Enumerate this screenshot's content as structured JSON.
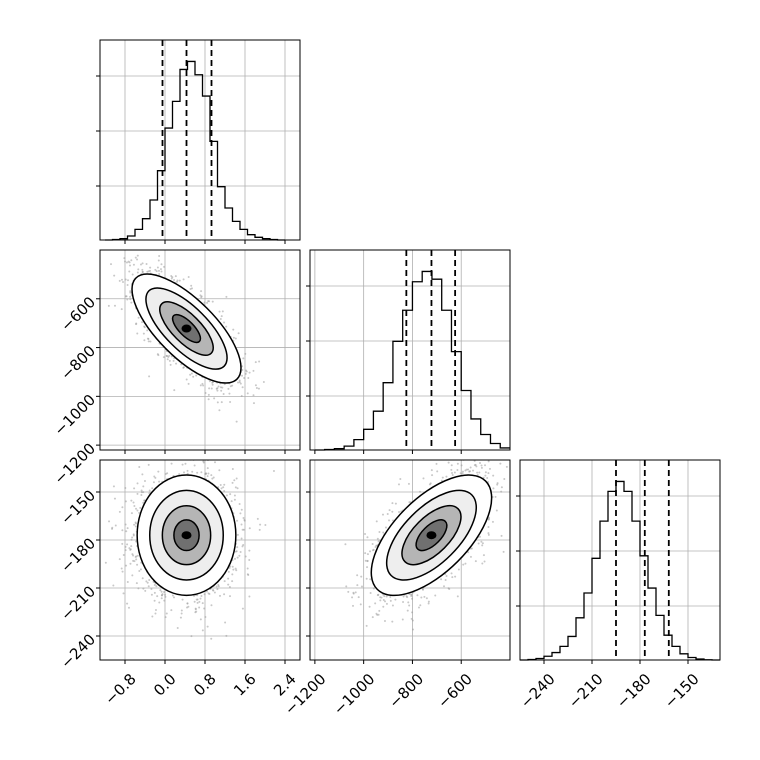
{
  "chart_data": {
    "type": "corner",
    "grid": true,
    "variables": [
      {
        "index": 0,
        "range": [
          -1.3,
          2.7
        ],
        "ticks": [
          -0.8,
          0.0,
          0.8,
          1.6,
          2.4
        ],
        "tick_labels": [
          "−0.8",
          "0.0",
          "0.8",
          "1.6",
          "2.4"
        ],
        "quantiles": [
          -0.05,
          0.43,
          0.93
        ],
        "mean": 0.43,
        "sd": 0.42
      },
      {
        "index": 1,
        "range": [
          -1220,
          -400
        ],
        "ticks": [
          -1200,
          -1000,
          -800,
          -600
        ],
        "tick_labels": [
          "−1200",
          "−1000",
          "−800",
          "−600"
        ],
        "quantiles": [
          -825,
          -722,
          -625
        ],
        "mean": -722,
        "sd": 95
      },
      {
        "index": 2,
        "range": [
          -255,
          -130
        ],
        "ticks": [
          -240,
          -210,
          -180,
          -150
        ],
        "tick_labels": [
          "−240",
          "−210",
          "−180",
          "−150"
        ],
        "quantiles": [
          -195,
          -177,
          -162
        ],
        "mean": -177,
        "sd": 16
      }
    ],
    "panels": [
      {
        "row": 0,
        "col": 0,
        "type": "histogram",
        "var": 0,
        "bins": [
          -1.2,
          -1.05,
          -0.9,
          -0.75,
          -0.6,
          -0.45,
          -0.3,
          -0.15,
          0.0,
          0.15,
          0.3,
          0.45,
          0.6,
          0.75,
          0.9,
          1.05,
          1.2,
          1.35,
          1.5,
          1.65,
          1.8,
          1.95,
          2.1,
          2.25,
          2.4
        ],
        "counts": [
          0,
          2,
          5,
          15,
          40,
          80,
          150,
          260,
          420,
          520,
          640,
          670,
          620,
          540,
          370,
          200,
          120,
          70,
          40,
          20,
          10,
          5,
          2,
          0
        ]
      },
      {
        "row": 1,
        "col": 1,
        "type": "histogram",
        "var": 1,
        "bins": [
          -1200,
          -1160,
          -1120,
          -1080,
          -1040,
          -1000,
          -960,
          -920,
          -880,
          -840,
          -800,
          -760,
          -720,
          -680,
          -640,
          -600,
          -560,
          -520,
          -480,
          -440,
          -400
        ],
        "counts": [
          0,
          2,
          5,
          15,
          40,
          80,
          150,
          260,
          420,
          540,
          650,
          690,
          660,
          540,
          380,
          230,
          120,
          60,
          25,
          8
        ]
      },
      {
        "row": 2,
        "col": 2,
        "type": "histogram",
        "var": 2,
        "bins": [
          -255,
          -250,
          -245,
          -240,
          -235,
          -230,
          -225,
          -220,
          -215,
          -210,
          -205,
          -200,
          -195,
          -190,
          -185,
          -180,
          -175,
          -170,
          -165,
          -160,
          -155,
          -150,
          -145,
          -140,
          -135,
          -130
        ],
        "counts": [
          0,
          2,
          6,
          15,
          30,
          55,
          95,
          170,
          270,
          410,
          560,
          680,
          720,
          680,
          560,
          420,
          290,
          180,
          100,
          55,
          25,
          10,
          4,
          1,
          0
        ]
      },
      {
        "row": 1,
        "col": 0,
        "type": "2d_density",
        "xvar": 0,
        "yvar": 1,
        "correlation": -0.72
      },
      {
        "row": 2,
        "col": 0,
        "type": "2d_density",
        "xvar": 0,
        "yvar": 2,
        "correlation": 0.0
      },
      {
        "row": 2,
        "col": 1,
        "type": "2d_density",
        "xvar": 1,
        "yvar": 2,
        "correlation": 0.62
      }
    ]
  }
}
